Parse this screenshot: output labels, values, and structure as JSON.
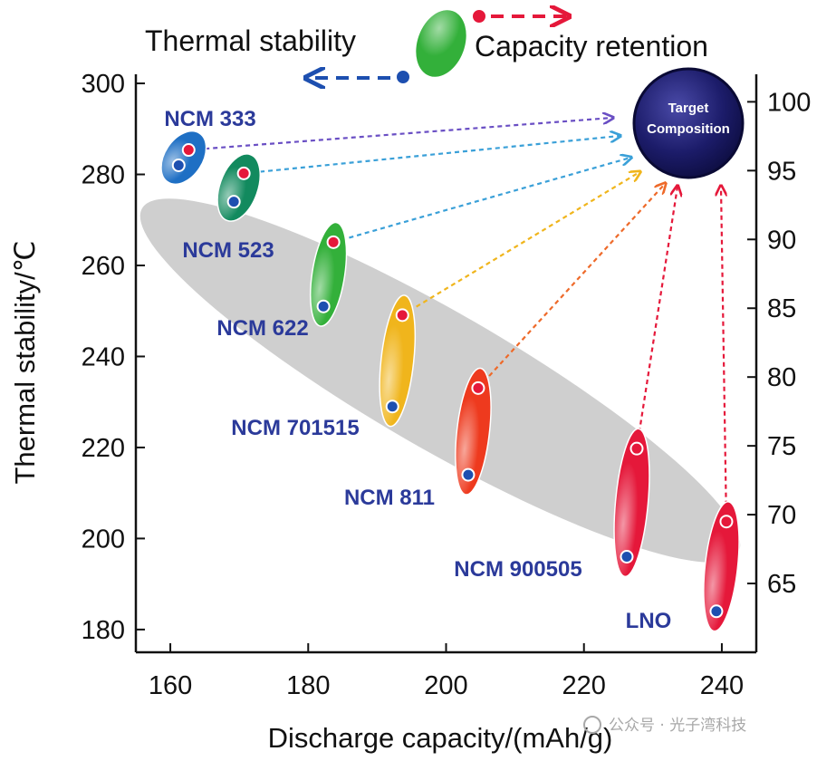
{
  "chart_data": {
    "type": "scatter",
    "title": "",
    "xlabel": "Discharge capacity/(mAh/g)",
    "ylabel_left": "Thermal stability/℃",
    "ylabel_right": "",
    "xlim": [
      155,
      245
    ],
    "ylim_left": [
      175,
      302
    ],
    "ylim_right": [
      60,
      102
    ],
    "x_ticks": [
      160,
      180,
      200,
      220,
      240
    ],
    "y_ticks_left": [
      180,
      200,
      220,
      240,
      260,
      280,
      300
    ],
    "y_ticks_right": [
      65,
      70,
      75,
      80,
      85,
      90,
      95,
      100
    ],
    "legend": {
      "thermal_stability": "Thermal stability",
      "capacity_retention": "Capacity retention"
    },
    "target": {
      "line1": "Target",
      "line2": "Composition"
    },
    "series": [
      {
        "name": "NCM 333",
        "capacity": 162,
        "thermal_stability": 282,
        "capacity_retention": 96.5,
        "color": "#1e6fc4"
      },
      {
        "name": "NCM 523",
        "capacity": 170,
        "thermal_stability": 274,
        "capacity_retention": 94.8,
        "color": "#128a5e"
      },
      {
        "name": "NCM 622",
        "capacity": 183,
        "thermal_stability": 251,
        "capacity_retention": 89.8,
        "color": "#33b03a"
      },
      {
        "name": "NCM 701515",
        "capacity": 193,
        "thermal_stability": 229,
        "capacity_retention": 84.5,
        "color": "#f0b51c"
      },
      {
        "name": "NCM 811",
        "capacity": 204,
        "thermal_stability": 214,
        "capacity_retention": 79.2,
        "color": "#ee3a1e"
      },
      {
        "name": "NCM 900505",
        "capacity": 227,
        "thermal_stability": 196,
        "capacity_retention": 74.8,
        "color": "#e5183a"
      },
      {
        "name": "LNO",
        "capacity": 240,
        "thermal_stability": 184,
        "capacity_retention": 69.5,
        "color": "#e5183a"
      }
    ]
  },
  "watermark": "公众号 · 光子湾科技"
}
